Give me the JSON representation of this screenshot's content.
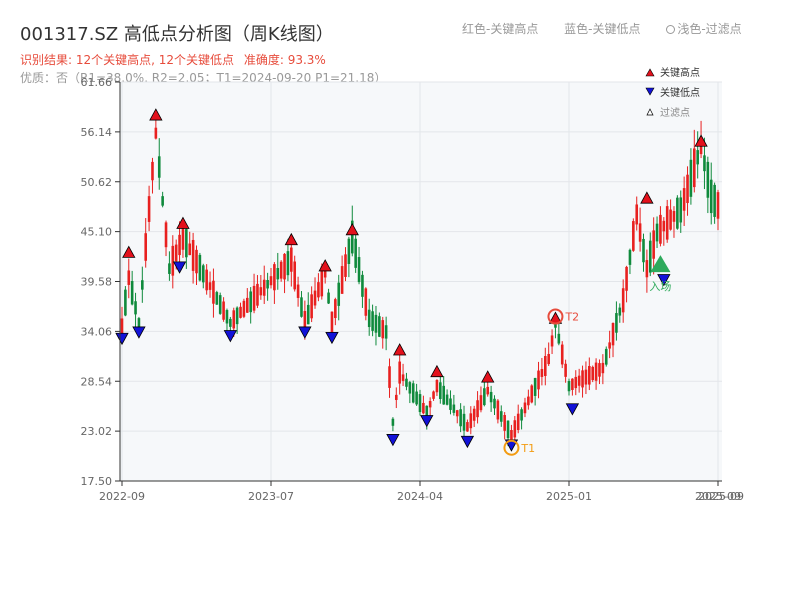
{
  "title": "001317.SZ 高低点分析图（周K线图）",
  "legend_top": {
    "red_label": "红色-关键高点",
    "blue_label": "蓝色-关键低点",
    "light_label": "浅色-过滤点"
  },
  "summary": {
    "result": "识别结果: 12个关键高点, 12个关键低点",
    "accuracy": "准确度: 93.3%"
  },
  "quality_line": "优质：否（R1=38.0%, R2=2.05；T1=2024-09-20 P1=21.18）",
  "colors": {
    "up": "#e8201f",
    "down": "#0f8a3c",
    "high_marker": "#e3111c",
    "low_marker": "#1212d8",
    "entry": "#2eaa5c",
    "t1": "#f39c12",
    "t2": "#e74c3c"
  },
  "chart_data": {
    "type": "candlestick",
    "title": "001317.SZ 高低点分析图（周K线图）",
    "ylim": [
      17.5,
      61.66
    ],
    "y_ticks": [
      "17.50",
      "23.02",
      "28.54",
      "34.06",
      "39.58",
      "45.10",
      "50.62",
      "56.14",
      "61.66"
    ],
    "x_ticks": [
      {
        "label": "2022-09",
        "week": 0
      },
      {
        "label": "2023-07",
        "week": 44
      },
      {
        "label": "2024-04",
        "week": 88
      },
      {
        "label": "2025-01",
        "week": 132
      },
      {
        "label": "2025-09",
        "week": 176
      }
    ],
    "x_tick_overlap_label": "2025-09",
    "week_count": 177,
    "anchors": [
      {
        "w": 0,
        "v": 34.5
      },
      {
        "w": 2,
        "v": 40.0
      },
      {
        "w": 5,
        "v": 35.0
      },
      {
        "w": 10,
        "v": 56.0
      },
      {
        "w": 14,
        "v": 41.0
      },
      {
        "w": 18,
        "v": 44.5
      },
      {
        "w": 32,
        "v": 35.0
      },
      {
        "w": 50,
        "v": 42.0
      },
      {
        "w": 54,
        "v": 35.0
      },
      {
        "w": 60,
        "v": 40.5
      },
      {
        "w": 62,
        "v": 35.0
      },
      {
        "w": 68,
        "v": 44.5
      },
      {
        "w": 73,
        "v": 35.5
      },
      {
        "w": 78,
        "v": 34.0
      },
      {
        "w": 80,
        "v": 24.0
      },
      {
        "w": 82,
        "v": 29.5
      },
      {
        "w": 90,
        "v": 25.0
      },
      {
        "w": 93,
        "v": 28.0
      },
      {
        "w": 102,
        "v": 23.5
      },
      {
        "w": 108,
        "v": 27.5
      },
      {
        "w": 115,
        "v": 22.5
      },
      {
        "w": 126,
        "v": 31.0
      },
      {
        "w": 128,
        "v": 35.0
      },
      {
        "w": 132,
        "v": 28.0
      },
      {
        "w": 142,
        "v": 30.0
      },
      {
        "w": 148,
        "v": 37.5
      },
      {
        "w": 152,
        "v": 47.0
      },
      {
        "w": 155,
        "v": 41.0
      },
      {
        "w": 158,
        "v": 45.0
      },
      {
        "w": 165,
        "v": 47.5
      },
      {
        "w": 171,
        "v": 54.5
      },
      {
        "w": 174,
        "v": 49.0
      },
      {
        "w": 176,
        "v": 48.0
      }
    ],
    "key_highs": [
      {
        "w": 2,
        "v": 42.8
      },
      {
        "w": 10,
        "v": 58.0
      },
      {
        "w": 18,
        "v": 46.0
      },
      {
        "w": 50,
        "v": 44.2
      },
      {
        "w": 60,
        "v": 41.3
      },
      {
        "w": 68,
        "v": 45.3
      },
      {
        "w": 82,
        "v": 32.0
      },
      {
        "w": 93,
        "v": 29.6
      },
      {
        "w": 108,
        "v": 29.0
      },
      {
        "w": 128,
        "v": 35.5
      },
      {
        "w": 155,
        "v": 48.8
      },
      {
        "w": 171,
        "v": 55.1
      }
    ],
    "key_lows": [
      {
        "w": 0,
        "v": 33.3
      },
      {
        "w": 5,
        "v": 34.0
      },
      {
        "w": 17,
        "v": 41.2
      },
      {
        "w": 32,
        "v": 33.6
      },
      {
        "w": 54,
        "v": 34.0
      },
      {
        "w": 62,
        "v": 33.4
      },
      {
        "w": 80,
        "v": 22.1
      },
      {
        "w": 90,
        "v": 24.2
      },
      {
        "w": 102,
        "v": 21.9
      },
      {
        "w": 115,
        "v": 21.5
      },
      {
        "w": 133,
        "v": 25.5
      },
      {
        "w": 160,
        "v": 39.8
      }
    ],
    "t1": {
      "label": "T1",
      "w": 115,
      "v": 21.18
    },
    "t2": {
      "label": "T2",
      "w": 128,
      "v": 35.7
    },
    "entry": {
      "label": "入场",
      "w": 159,
      "v": 41.5
    },
    "legend": {
      "high": "关键高点",
      "low": "关键低点",
      "filtered": "过滤点",
      "position": "top-right"
    },
    "grid": true
  }
}
